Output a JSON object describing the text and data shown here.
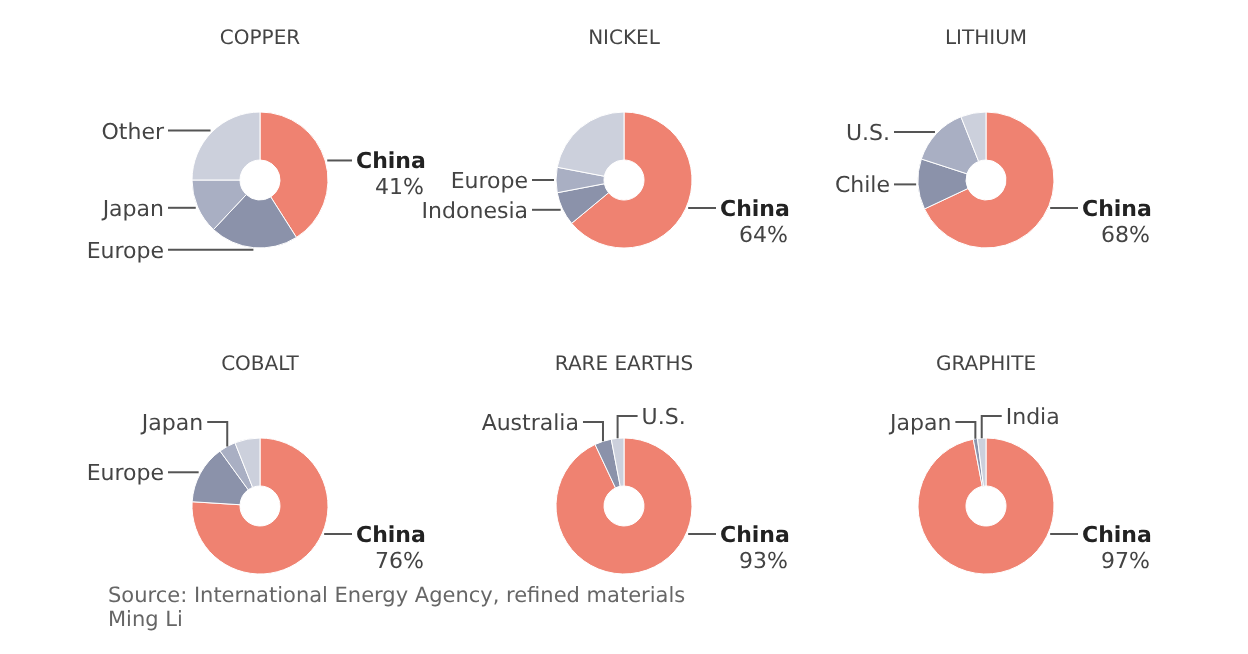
{
  "chart_data": [
    {
      "type": "donut",
      "title": "COPPER",
      "categories": [
        "China",
        "Europe",
        "Japan",
        "Other"
      ],
      "values": [
        41,
        21,
        13,
        25
      ],
      "colors": [
        "#ef8271",
        "#8b92aa",
        "#a9afc3",
        "#ccd0dc"
      ],
      "value_labels": [
        "41%",
        null,
        null,
        null
      ]
    },
    {
      "type": "donut",
      "title": "NICKEL",
      "categories": [
        "China",
        "Indonesia",
        "Europe",
        null
      ],
      "values": [
        64,
        8,
        6,
        22
      ],
      "colors": [
        "#ef8271",
        "#8b92aa",
        "#a9afc3",
        "#ccd0dc"
      ],
      "value_labels": [
        "64%",
        null,
        null,
        null
      ]
    },
    {
      "type": "donut",
      "title": "LITHIUM",
      "categories": [
        "China",
        "Chile",
        "U.S.",
        null
      ],
      "values": [
        68,
        12,
        14,
        6
      ],
      "colors": [
        "#ef8271",
        "#8b92aa",
        "#a9afc3",
        "#ccd0dc"
      ],
      "value_labels": [
        "68%",
        null,
        null,
        null
      ]
    },
    {
      "type": "donut",
      "title": "COBALT",
      "categories": [
        "China",
        "Europe",
        "Japan",
        null
      ],
      "values": [
        76,
        14,
        4,
        6
      ],
      "colors": [
        "#ef8271",
        "#8b92aa",
        "#a9afc3",
        "#ccd0dc"
      ],
      "value_labels": [
        "76%",
        null,
        null,
        null
      ]
    },
    {
      "type": "donut",
      "title": "RARE EARTHS",
      "categories": [
        "China",
        "Australia",
        "U.S."
      ],
      "values": [
        93,
        4,
        3
      ],
      "colors": [
        "#ef8271",
        "#8b92aa",
        "#ccd0dc"
      ],
      "value_labels": [
        "93%",
        null,
        null
      ]
    },
    {
      "type": "donut",
      "title": "GRAPHITE",
      "categories": [
        "China",
        "Japan",
        "India"
      ],
      "values": [
        97,
        1,
        2
      ],
      "colors": [
        "#ef8271",
        "#8b92aa",
        "#ccd0dc"
      ],
      "value_labels": [
        "97%",
        null,
        null
      ],
      "annotations": [
        "Source: International Energy Agency, refined materials",
        "Ming Li"
      ]
    }
  ]
}
